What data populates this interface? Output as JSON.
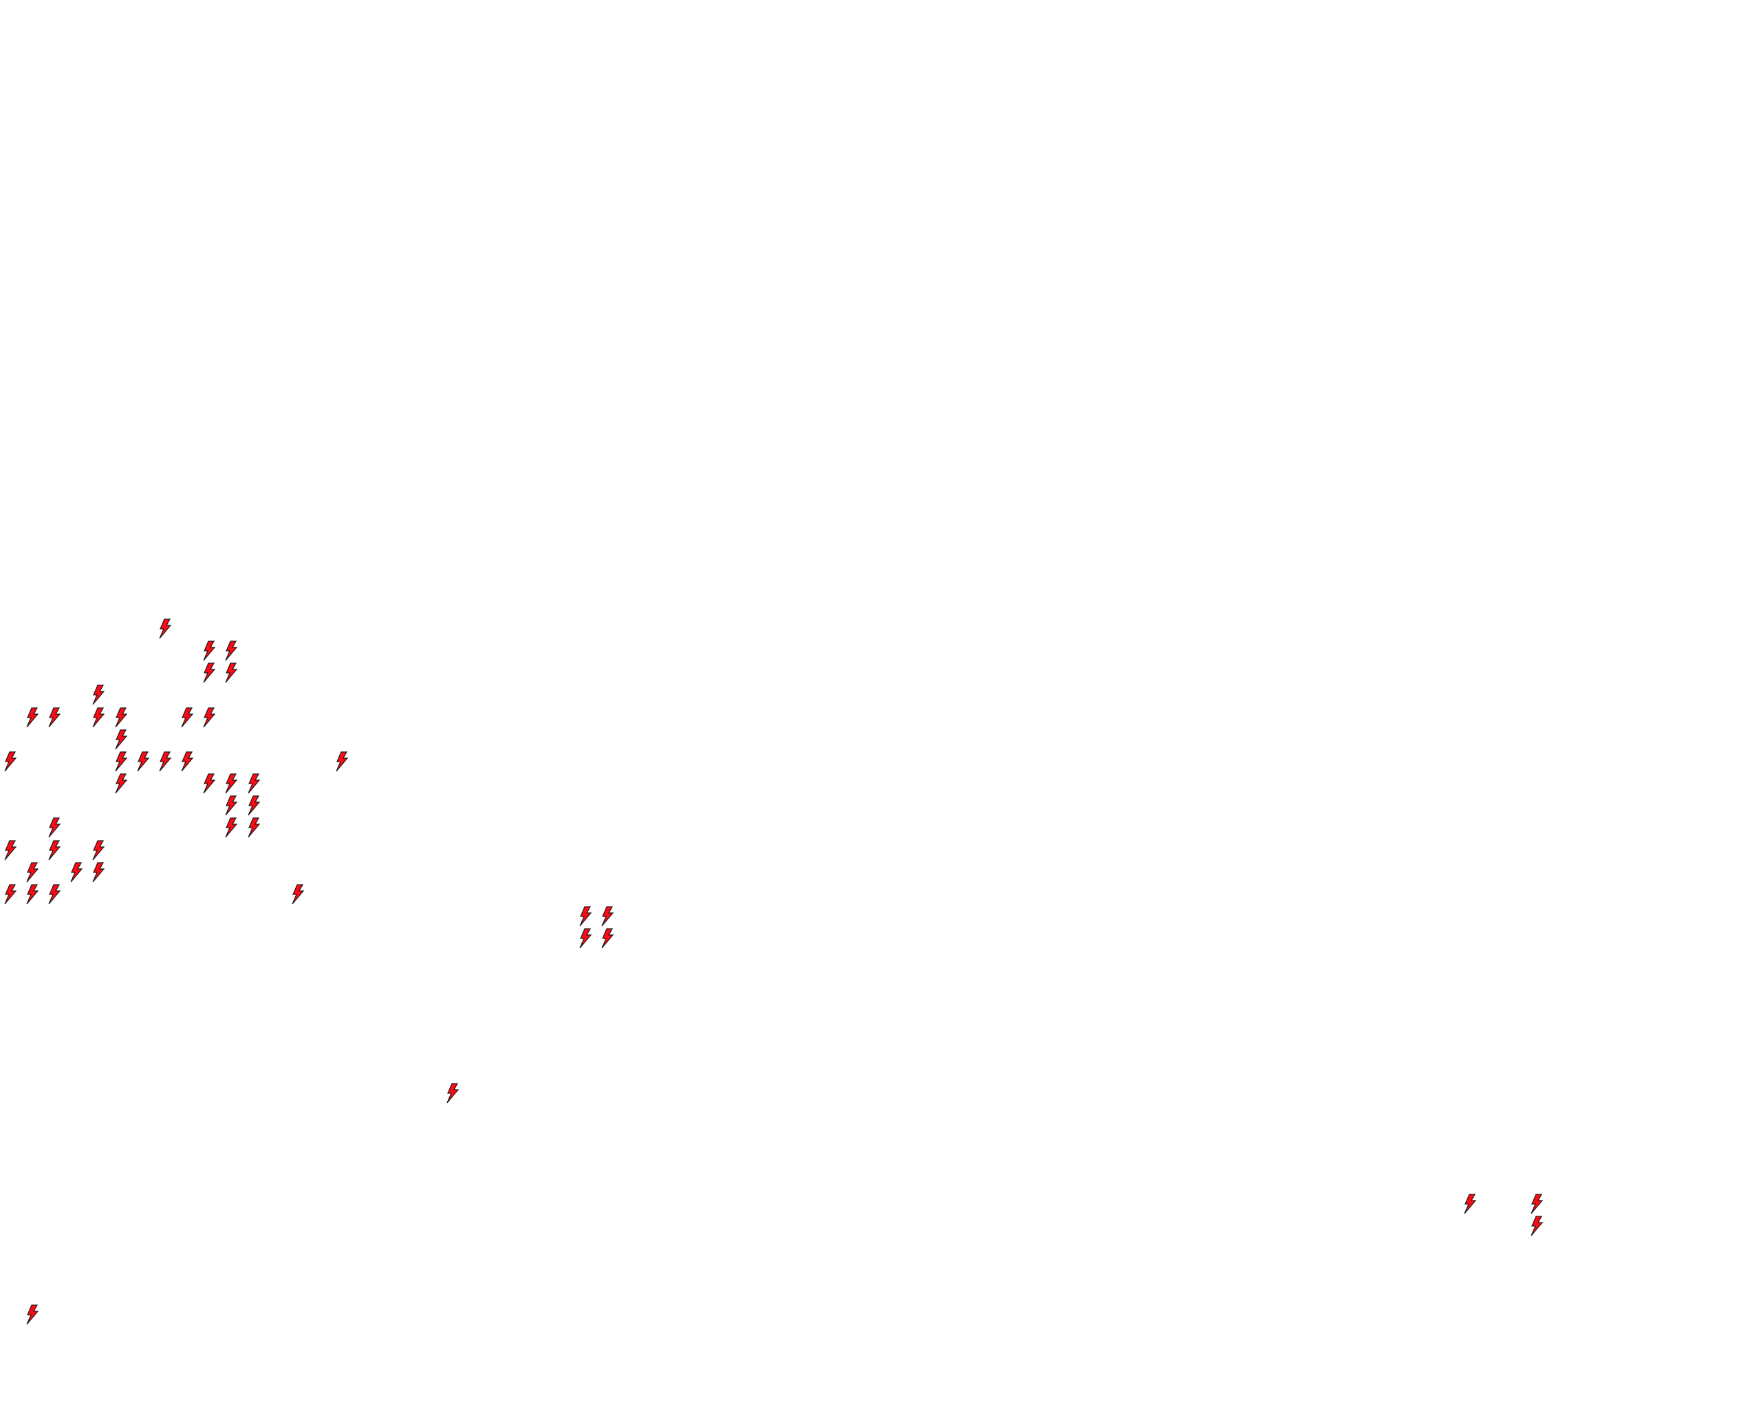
{
  "map": {
    "marker_icon": "lightning-bolt-icon",
    "marker_fill": "#ff0a14",
    "marker_stroke": "#1a1a1a",
    "background": "#ffffff"
  }
}
